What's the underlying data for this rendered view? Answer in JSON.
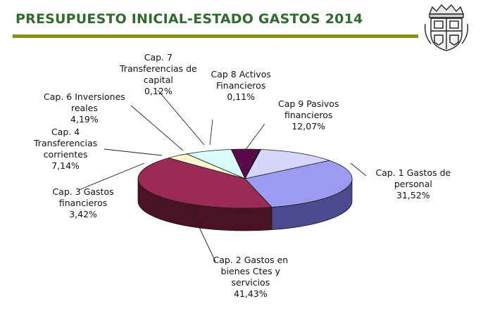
{
  "title": "PRESUPUESTO INICIAL-ESTADO GASTOS 2014",
  "chart_data": {
    "type": "pie",
    "title": "PRESUPUESTO INICIAL-ESTADO GASTOS 2014",
    "slices": [
      {
        "key": "cap1",
        "label_lines": [
          "Cap. 1 Gastos de",
          "personal"
        ],
        "pct_text": "31,52%",
        "value": 31.52,
        "top": "#9b9bf0",
        "side": "#4a4a8e"
      },
      {
        "key": "cap2",
        "label_lines": [
          "Cap. 2 Gastos en",
          "bienes Ctes y",
          "servicios"
        ],
        "pct_text": "41,43%",
        "value": 41.43,
        "top": "#9b2a55",
        "side": "#4a1226"
      },
      {
        "key": "cap3",
        "label_lines": [
          "Cap. 3 Gastos",
          "financieros"
        ],
        "pct_text": "3,42%",
        "value": 3.42,
        "top": "#fbfbd0",
        "side": "#9a9a6a"
      },
      {
        "key": "cap4",
        "label_lines": [
          "Cap. 4",
          "Transferencias",
          "corrientes"
        ],
        "pct_text": "7,14%",
        "value": 7.14,
        "top": "#d8fbfb",
        "side": "#6a9a9a"
      },
      {
        "key": "cap6",
        "label_lines": [
          "Cap. 6 Inversiones",
          "reales"
        ],
        "pct_text": "4,19%",
        "value": 4.19,
        "top": "#5a0a4a",
        "side": "#2d0525"
      },
      {
        "key": "cap7",
        "label_lines": [
          "Cap. 7",
          "Transferencias de",
          "capital"
        ],
        "pct_text": "0,12%",
        "value": 0.12,
        "top": "#ff8080",
        "side": "#8a3030"
      },
      {
        "key": "cap8",
        "label_lines": [
          "Cap 8 Activos",
          "Financieros"
        ],
        "pct_text": "0,11%",
        "value": 0.11,
        "top": "#1f6fcf",
        "side": "#0f3a6a"
      },
      {
        "key": "cap9",
        "label_lines": [
          "Cap 9 Pasivos",
          "financieros"
        ],
        "pct_text": "12,07%",
        "value": 12.07,
        "top": "#d6d6fb",
        "side": "#8a8aa8"
      }
    ]
  }
}
